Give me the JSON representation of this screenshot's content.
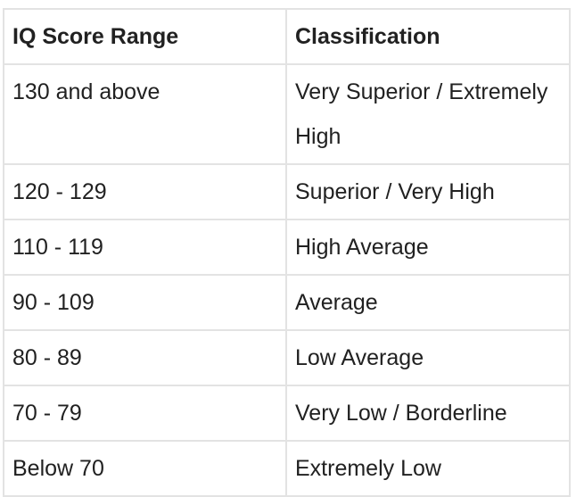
{
  "table": {
    "header": [
      "IQ Score Range",
      "Classification"
    ],
    "rows": [
      [
        "130 and above",
        "Very Superior / Extremely High"
      ],
      [
        "120 - 129",
        "Superior / Very High"
      ],
      [
        "110 - 119",
        "High Average"
      ],
      [
        "90 - 109",
        "Average"
      ],
      [
        "80 - 89",
        "Low Average"
      ],
      [
        "70 - 79",
        "Very Low / Borderline"
      ],
      [
        "Below 70",
        "Extremely Low"
      ]
    ]
  }
}
